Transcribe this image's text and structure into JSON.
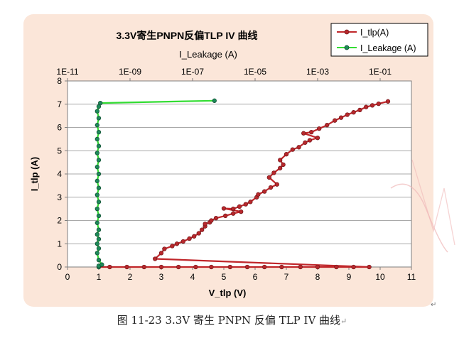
{
  "caption": {
    "text": "图 11-23 3.3V 寄生 PNPN 反偏 TLP IV 曲线",
    "return_mark": "↵"
  },
  "corner_mark": "↵",
  "chart_data": {
    "type": "scatter",
    "title": "3.3V寄生PNPN反偏TLP IV 曲线",
    "xlabel": "V_tlp (V)",
    "ylabel": "I_tlp (A)",
    "x2label": "I_Leakage (A)",
    "xlim": [
      0,
      11
    ],
    "ylim": [
      0,
      8
    ],
    "x2lim_log10": [
      -11,
      0
    ],
    "x_ticks": [
      "0",
      "1",
      "2",
      "3",
      "4",
      "5",
      "6",
      "7",
      "8",
      "9",
      "10",
      "11"
    ],
    "y_ticks": [
      "0",
      "1",
      "2",
      "3",
      "4",
      "5",
      "6",
      "7",
      "8"
    ],
    "x2_ticks": [
      "1E-11",
      "1E-09",
      "1E-07",
      "1E-05",
      "1E-03",
      "1E-01"
    ],
    "grid": true,
    "legend_position": "top-right",
    "series": [
      {
        "name": "I_tlp(A)",
        "axis": "bottom",
        "color": "#c0262a",
        "marker_fill": "#b8282c",
        "points": [
          [
            1.0,
            0.0
          ],
          [
            1.35,
            0.0
          ],
          [
            1.9,
            0.0
          ],
          [
            2.45,
            0.0
          ],
          [
            3.0,
            0.0
          ],
          [
            3.55,
            0.0
          ],
          [
            4.1,
            0.0
          ],
          [
            4.6,
            0.0
          ],
          [
            5.2,
            0.0
          ],
          [
            5.75,
            0.0
          ],
          [
            6.3,
            0.0
          ],
          [
            6.85,
            0.0
          ],
          [
            7.45,
            0.0
          ],
          [
            8.0,
            0.0
          ],
          [
            8.6,
            0.0
          ],
          [
            9.15,
            0.0
          ],
          [
            9.65,
            0.0
          ],
          [
            2.8,
            0.35
          ],
          [
            3.0,
            0.6
          ],
          [
            3.1,
            0.78
          ],
          [
            3.35,
            0.9
          ],
          [
            3.5,
            1.0
          ],
          [
            3.7,
            1.1
          ],
          [
            3.9,
            1.22
          ],
          [
            4.05,
            1.32
          ],
          [
            4.2,
            1.45
          ],
          [
            4.3,
            1.6
          ],
          [
            4.4,
            1.75
          ],
          [
            4.4,
            1.85
          ],
          [
            4.55,
            1.92
          ],
          [
            4.6,
            2.0
          ],
          [
            4.75,
            2.1
          ],
          [
            5.05,
            2.2
          ],
          [
            5.3,
            2.3
          ],
          [
            5.55,
            2.38
          ],
          [
            5.0,
            2.52
          ],
          [
            5.3,
            2.5
          ],
          [
            5.5,
            2.6
          ],
          [
            5.7,
            2.7
          ],
          [
            5.85,
            2.8
          ],
          [
            6.05,
            3.0
          ],
          [
            6.1,
            3.12
          ],
          [
            6.3,
            3.25
          ],
          [
            6.5,
            3.42
          ],
          [
            6.7,
            3.55
          ],
          [
            6.45,
            3.85
          ],
          [
            6.6,
            4.05
          ],
          [
            6.8,
            4.25
          ],
          [
            6.9,
            4.4
          ],
          [
            6.8,
            4.6
          ],
          [
            7.0,
            4.85
          ],
          [
            7.2,
            5.05
          ],
          [
            7.4,
            5.15
          ],
          [
            7.6,
            5.35
          ],
          [
            7.75,
            5.45
          ],
          [
            8.0,
            5.55
          ],
          [
            7.55,
            5.75
          ],
          [
            7.8,
            5.8
          ],
          [
            8.05,
            5.95
          ],
          [
            8.3,
            6.1
          ],
          [
            8.55,
            6.3
          ],
          [
            8.75,
            6.42
          ],
          [
            8.95,
            6.55
          ],
          [
            9.15,
            6.65
          ],
          [
            9.35,
            6.75
          ],
          [
            9.55,
            6.88
          ],
          [
            9.75,
            6.95
          ],
          [
            9.95,
            7.02
          ],
          [
            10.25,
            7.12
          ]
        ]
      },
      {
        "name": "I_Leakage (A)",
        "axis": "top",
        "color": "#33dd33",
        "marker_fill": "#1e8a5a",
        "points": [
          [
            -10.0,
            0.0
          ],
          [
            -10.0,
            0.05
          ],
          [
            -9.9,
            0.1
          ],
          [
            -10.0,
            0.3
          ],
          [
            -10.05,
            0.6
          ],
          [
            -10.0,
            0.8
          ],
          [
            -10.05,
            1.0
          ],
          [
            -10.0,
            1.2
          ],
          [
            -10.05,
            1.4
          ],
          [
            -10.0,
            1.6
          ],
          [
            -10.05,
            1.9
          ],
          [
            -10.0,
            2.2
          ],
          [
            -10.05,
            2.5
          ],
          [
            -10.0,
            2.8
          ],
          [
            -10.05,
            3.1
          ],
          [
            -10.0,
            3.4
          ],
          [
            -10.05,
            3.7
          ],
          [
            -10.0,
            4.0
          ],
          [
            -10.05,
            4.3
          ],
          [
            -10.0,
            4.6
          ],
          [
            -10.05,
            4.9
          ],
          [
            -10.0,
            5.2
          ],
          [
            -10.05,
            5.5
          ],
          [
            -10.0,
            5.8
          ],
          [
            -10.05,
            6.1
          ],
          [
            -10.0,
            6.4
          ],
          [
            -10.05,
            6.7
          ],
          [
            -10.0,
            6.9
          ],
          [
            -9.95,
            7.05
          ],
          [
            -6.3,
            7.15
          ]
        ]
      }
    ]
  }
}
